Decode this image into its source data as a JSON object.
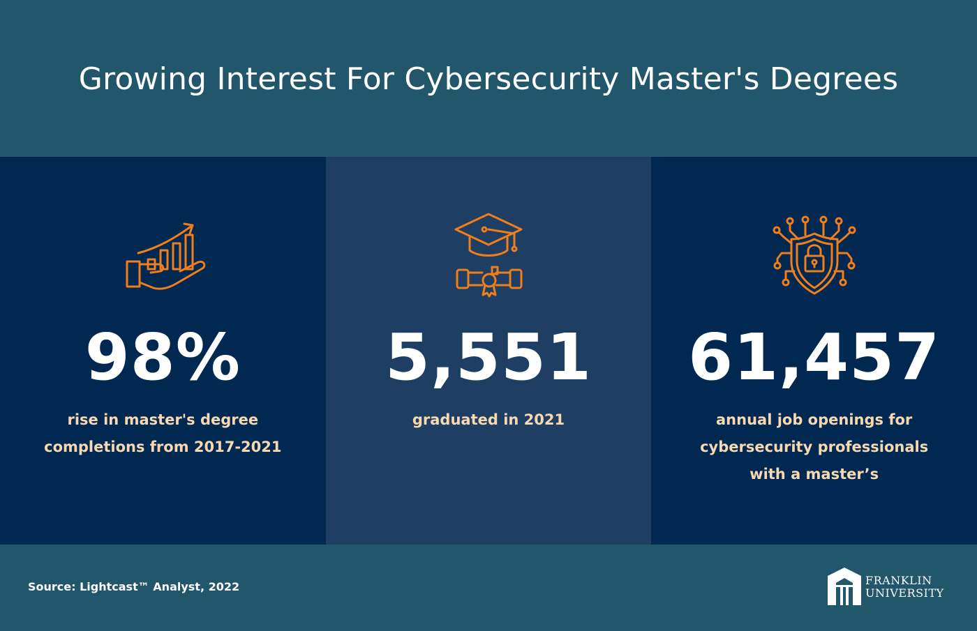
{
  "header": {
    "title": "Growing Interest For Cybersecurity Master's Degrees"
  },
  "stats": [
    {
      "value": "98%",
      "lines": [
        "rise in master's degree",
        "completions from 2017-2021"
      ],
      "icon": "growth-chart-hand-icon"
    },
    {
      "value": "5,551",
      "lines": [
        "graduated in 2021"
      ],
      "icon": "graduation-cap-diploma-icon"
    },
    {
      "value": "61,457",
      "lines": [
        "annual job openings for",
        "cybersecurity professionals",
        "with a master’s"
      ],
      "icon": "circuit-shield-lock-icon"
    }
  ],
  "footer": {
    "source": "Source: Lightcast™ Analyst, 2022",
    "logo": {
      "line1": "FRANKLIN",
      "line2": "UNIVERSITY"
    }
  },
  "colors": {
    "background": "#21566b",
    "panel_dark": "#002851",
    "panel_mid": "#1e3f63",
    "icon_orange": "#f07e1c",
    "desc_text": "#f8d8b0"
  }
}
